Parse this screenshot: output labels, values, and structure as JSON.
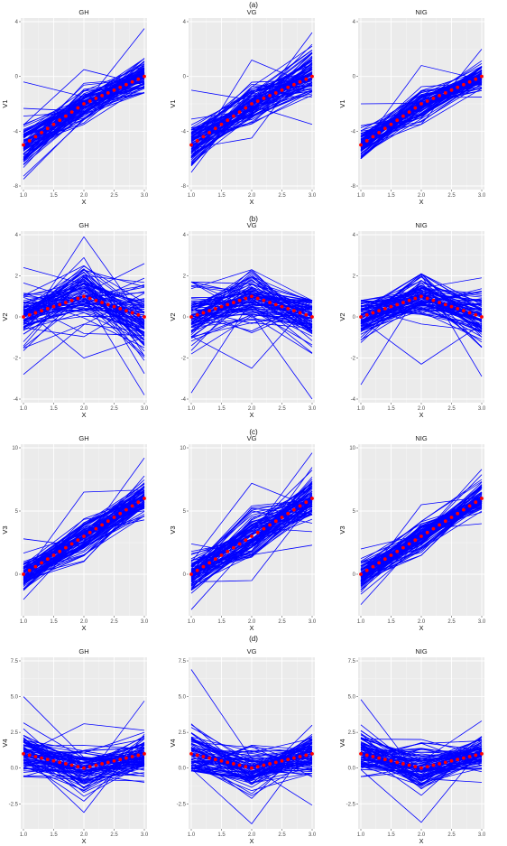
{
  "rows": [
    {
      "label": "(a)",
      "ylabel": "V1",
      "yticks": [
        -8,
        -4,
        0,
        4
      ],
      "ylim": [
        -8,
        4
      ],
      "mean": [
        -5,
        -2,
        0
      ]
    },
    {
      "label": "(b)",
      "ylabel": "V2",
      "yticks": [
        -4,
        -2,
        0,
        2,
        4
      ],
      "ylim": [
        -4,
        4
      ],
      "mean": [
        0,
        1,
        0
      ]
    },
    {
      "label": "(c)",
      "ylabel": "V3",
      "yticks": [
        0,
        5,
        10
      ],
      "ylim": [
        -3,
        10
      ],
      "mean": [
        0,
        3,
        6
      ]
    },
    {
      "label": "(d)",
      "ylabel": "V4",
      "yticks": [
        -2.5,
        0.0,
        2.5,
        5.0,
        7.5
      ],
      "ylim": [
        -4,
        7.5
      ],
      "mean": [
        1,
        0,
        1
      ]
    }
  ],
  "panels": [
    "GH",
    "VG",
    "NIG"
  ],
  "xlabel": "X",
  "xticks": [
    "1.0",
    "1.5",
    "2.0",
    "2.5",
    "3.0"
  ],
  "chart_data": {
    "type": "line",
    "x": [
      1.0,
      2.0,
      3.0
    ],
    "xlim": [
      1.0,
      3.0
    ],
    "grid": true,
    "colors": {
      "curves": "#0000ff",
      "mean": "#ff0000",
      "panel_bg": "#ebebeb",
      "grid": "#ffffff"
    },
    "note_series": "about 100 blue simulated curves per panel with a red dotted mean curve",
    "rows": [
      {
        "ylabel": "V1",
        "ylim": [
          -8,
          4
        ],
        "mean": {
          "x": [
            1.0,
            2.0,
            3.0
          ],
          "y": [
            -5,
            -2,
            0
          ]
        },
        "panels": {
          "GH": {
            "x": [
              1,
              2,
              3
            ],
            "y_range_at_x": {
              "1": [
                -7.5,
                -0.4
              ],
              "2": [
                -3.5,
                0.5
              ],
              "3": [
                -1.2,
                3.5
              ]
            }
          },
          "VG": {
            "x": [
              1,
              2,
              3
            ],
            "y_range_at_x": {
              "1": [
                -7.0,
                -1.0
              ],
              "2": [
                -4.5,
                1.2
              ],
              "3": [
                -3.5,
                3.2
              ]
            }
          },
          "NIG": {
            "x": [
              1,
              2,
              3
            ],
            "y_range_at_x": {
              "1": [
                -6.0,
                -2.0
              ],
              "2": [
                -3.5,
                0.8
              ],
              "3": [
                -1.5,
                2.0
              ]
            }
          }
        }
      },
      {
        "ylabel": "V2",
        "ylim": [
          -4,
          4
        ],
        "mean": {
          "x": [
            1.0,
            2.0,
            3.0
          ],
          "y": [
            0,
            1,
            0
          ]
        },
        "panels": {
          "GH": {
            "x": [
              1,
              2,
              3
            ],
            "y_range_at_x": {
              "1": [
                -2.8,
                2.4
              ],
              "2": [
                -2.0,
                3.9
              ],
              "3": [
                -3.8,
                2.6
              ]
            }
          },
          "VG": {
            "x": [
              1,
              2,
              3
            ],
            "y_range_at_x": {
              "1": [
                -3.7,
                1.7
              ],
              "2": [
                -2.5,
                2.3
              ],
              "3": [
                -4.0,
                0.8
              ]
            }
          },
          "NIG": {
            "x": [
              1,
              2,
              3
            ],
            "y_range_at_x": {
              "1": [
                -3.3,
                0.8
              ],
              "2": [
                -2.3,
                2.1
              ],
              "3": [
                -2.9,
                1.9
              ]
            }
          }
        }
      },
      {
        "ylabel": "V3",
        "ylim": [
          -3,
          10
        ],
        "mean": {
          "x": [
            1.0,
            2.0,
            3.0
          ],
          "y": [
            0,
            3,
            6
          ]
        },
        "panels": {
          "GH": {
            "x": [
              1,
              2,
              3
            ],
            "y_range_at_x": {
              "1": [
                -2.0,
                2.8
              ],
              "2": [
                1.0,
                6.5
              ],
              "3": [
                4.3,
                9.2
              ]
            }
          },
          "VG": {
            "x": [
              1,
              2,
              3
            ],
            "y_range_at_x": {
              "1": [
                -2.8,
                2.4
              ],
              "2": [
                -0.5,
                7.2
              ],
              "3": [
                2.3,
                9.6
              ]
            }
          },
          "NIG": {
            "x": [
              1,
              2,
              3
            ],
            "y_range_at_x": {
              "1": [
                -2.4,
                2.0
              ],
              "2": [
                1.5,
                5.5
              ],
              "3": [
                4.0,
                8.3
              ]
            }
          }
        }
      },
      {
        "ylabel": "V4",
        "ylim": [
          -4,
          7.5
        ],
        "mean": {
          "x": [
            1.0,
            2.0,
            3.0
          ],
          "y": [
            1,
            0,
            1
          ]
        },
        "panels": {
          "GH": {
            "x": [
              1,
              2,
              3
            ],
            "y_range_at_x": {
              "1": [
                -0.6,
                5.0
              ],
              "2": [
                -3.1,
                3.1
              ],
              "3": [
                -1.0,
                4.7
              ]
            }
          },
          "VG": {
            "x": [
              1,
              2,
              3
            ],
            "y_range_at_x": {
              "1": [
                -0.2,
                6.9
              ],
              "2": [
                -3.9,
                1.6
              ],
              "3": [
                -2.6,
                3.0
              ]
            }
          },
          "NIG": {
            "x": [
              1,
              2,
              3
            ],
            "y_range_at_x": {
              "1": [
                -0.6,
                4.8
              ],
              "2": [
                -3.8,
                2.0
              ],
              "3": [
                -1.0,
                3.3
              ]
            }
          }
        }
      }
    ]
  }
}
